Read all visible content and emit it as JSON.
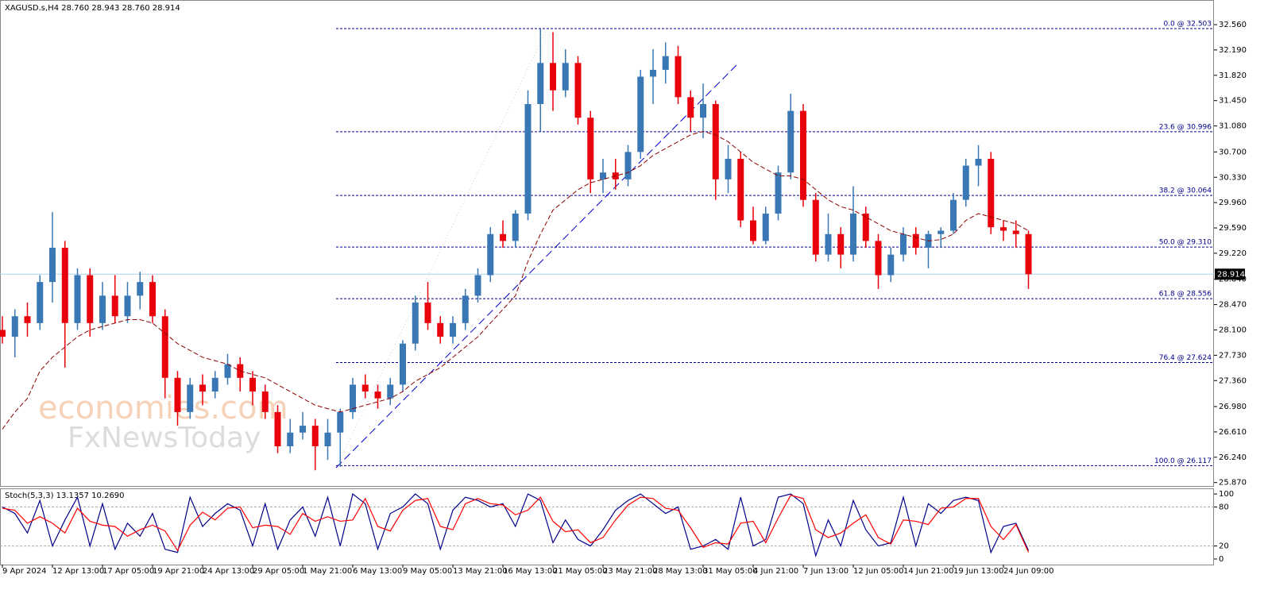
{
  "chart_data": [
    {
      "type": "candlestick",
      "title": "XAGUSD.s,H4  28.760 28.943 28.760 28.914",
      "watermark": [
        "economies.com",
        "FxNewsToday"
      ],
      "categories": [
        "9 Apr 2024",
        null,
        null,
        null,
        "12 Apr 13:00",
        null,
        null,
        null,
        "17 Apr 05:00",
        null,
        null,
        null,
        "19 Apr 21:00",
        null,
        null,
        null,
        "24 Apr 13:00",
        null,
        null,
        null,
        "29 Apr 05:00",
        null,
        null,
        null,
        "1 May 21:00",
        null,
        null,
        null,
        "6 May 13:00",
        null,
        null,
        null,
        "9 May 05:00",
        null,
        null,
        null,
        "13 May 21:00",
        null,
        null,
        null,
        "16 May 13:00",
        null,
        null,
        null,
        "21 May 05:00",
        null,
        null,
        null,
        "23 May 21:00",
        null,
        null,
        null,
        "28 May 13:00",
        null,
        null,
        null,
        "31 May 05:00",
        null,
        null,
        null,
        "4 Jun 21:00",
        null,
        null,
        null,
        "7 Jun 13:00",
        null,
        null,
        null,
        "12 Jun 05:00",
        null,
        null,
        null,
        "14 Jun 21:00",
        null,
        null,
        null,
        "19 Jun 13:00",
        null,
        null,
        null,
        "24 Jun 09:00",
        null,
        null
      ],
      "open": [
        28.1,
        28.0,
        28.3,
        28.2,
        28.8,
        29.3,
        28.2,
        28.9,
        28.2,
        28.6,
        28.3,
        28.6,
        28.8,
        28.3,
        27.4,
        26.9,
        27.3,
        27.2,
        27.4,
        27.6,
        27.4,
        27.2,
        26.9,
        26.4,
        26.6,
        26.7,
        26.4,
        26.6,
        26.9,
        27.3,
        27.2,
        27.1,
        27.3,
        27.9,
        28.5,
        28.2,
        28.0,
        28.2,
        28.6,
        28.9,
        29.5,
        29.4,
        29.8,
        31.4,
        32.0,
        31.6,
        32.0,
        31.2,
        30.3,
        30.4,
        30.3,
        30.7,
        31.8,
        31.9,
        32.1,
        31.5,
        31.2,
        31.4,
        30.3,
        30.6,
        29.7,
        29.4,
        29.8,
        30.4,
        31.3,
        30.0,
        29.2,
        29.5,
        29.2,
        29.8,
        29.4,
        28.9,
        29.2,
        29.5,
        29.3,
        29.5,
        29.55,
        30.0,
        30.5,
        30.6,
        29.6,
        29.55,
        29.5
      ],
      "high": [
        28.3,
        28.4,
        28.5,
        28.9,
        29.82,
        29.4,
        29.0,
        29.0,
        28.8,
        28.9,
        28.8,
        28.95,
        28.9,
        28.4,
        27.5,
        27.4,
        27.45,
        27.5,
        27.75,
        27.7,
        27.5,
        27.3,
        27.0,
        26.8,
        26.9,
        26.8,
        26.8,
        26.95,
        27.4,
        27.45,
        27.3,
        27.4,
        27.95,
        28.6,
        28.8,
        28.3,
        28.3,
        28.7,
        29.0,
        29.6,
        29.7,
        29.85,
        31.6,
        32.5,
        32.45,
        32.2,
        32.1,
        31.3,
        30.6,
        30.6,
        30.8,
        31.9,
        32.2,
        32.3,
        32.25,
        31.6,
        31.7,
        31.45,
        30.8,
        30.7,
        29.9,
        29.9,
        30.5,
        31.55,
        31.4,
        30.1,
        29.8,
        29.6,
        30.2,
        29.9,
        29.5,
        29.3,
        29.6,
        29.6,
        29.55,
        29.6,
        30.1,
        30.6,
        30.8,
        30.7,
        29.7,
        29.7,
        29.55
      ],
      "low": [
        27.9,
        27.7,
        28.0,
        28.1,
        28.5,
        27.55,
        28.1,
        28.0,
        28.1,
        28.2,
        28.2,
        28.4,
        28.2,
        27.1,
        26.7,
        26.8,
        27.0,
        27.1,
        27.3,
        27.2,
        27.0,
        26.8,
        26.3,
        26.3,
        26.5,
        26.05,
        26.2,
        26.1,
        26.8,
        27.1,
        26.95,
        27.0,
        27.2,
        27.8,
        28.1,
        27.9,
        27.9,
        28.1,
        28.5,
        28.8,
        29.3,
        29.3,
        29.7,
        31.0,
        31.3,
        31.5,
        31.1,
        30.1,
        30.1,
        30.15,
        30.2,
        30.6,
        31.4,
        31.7,
        31.4,
        31.0,
        30.9,
        30.0,
        30.1,
        29.6,
        29.35,
        29.35,
        29.7,
        30.3,
        29.9,
        29.1,
        29.1,
        29.0,
        29.1,
        29.3,
        28.7,
        28.8,
        29.1,
        29.2,
        29.0,
        29.3,
        29.5,
        29.9,
        30.2,
        29.5,
        29.4,
        29.3,
        28.7
      ],
      "close": [
        28.0,
        28.3,
        28.2,
        28.8,
        29.3,
        28.2,
        28.9,
        28.2,
        28.6,
        28.3,
        28.6,
        28.8,
        28.3,
        27.4,
        26.9,
        27.3,
        27.2,
        27.4,
        27.6,
        27.4,
        27.2,
        26.9,
        26.4,
        26.6,
        26.7,
        26.4,
        26.6,
        26.9,
        27.3,
        27.2,
        27.1,
        27.3,
        27.9,
        28.5,
        28.2,
        28.0,
        28.2,
        28.6,
        28.9,
        29.5,
        29.4,
        29.8,
        31.4,
        32.0,
        31.6,
        32.0,
        31.2,
        30.3,
        30.4,
        30.3,
        30.7,
        31.8,
        31.9,
        32.1,
        31.5,
        31.2,
        31.4,
        30.3,
        30.6,
        29.7,
        29.4,
        29.8,
        30.4,
        31.3,
        30.0,
        29.2,
        29.5,
        29.2,
        29.8,
        29.4,
        28.9,
        29.2,
        29.5,
        29.3,
        29.5,
        29.55,
        30.0,
        30.5,
        30.6,
        29.6,
        29.55,
        29.5,
        28.914
      ],
      "up_color": "#3a78b5",
      "down_color": "#e8000b",
      "moving_average": {
        "color": "#8b0000",
        "values": [
          26.65,
          26.9,
          27.1,
          27.5,
          27.7,
          27.85,
          28.0,
          28.1,
          28.15,
          28.2,
          28.25,
          28.25,
          28.2,
          28.05,
          27.9,
          27.8,
          27.7,
          27.65,
          27.6,
          27.5,
          27.45,
          27.4,
          27.3,
          27.2,
          27.1,
          27.0,
          26.95,
          26.9,
          26.95,
          27.0,
          27.05,
          27.1,
          27.2,
          27.35,
          27.45,
          27.55,
          27.7,
          27.85,
          28.0,
          28.2,
          28.4,
          28.6,
          29.1,
          29.5,
          29.85,
          30.0,
          30.15,
          30.25,
          30.3,
          30.35,
          30.4,
          30.5,
          30.65,
          30.75,
          30.85,
          30.95,
          31.0,
          30.95,
          30.85,
          30.7,
          30.55,
          30.45,
          30.35,
          30.35,
          30.3,
          30.15,
          30.0,
          29.9,
          29.85,
          29.75,
          29.65,
          29.55,
          29.5,
          29.45,
          29.4,
          29.42,
          29.5,
          29.7,
          29.8,
          29.75,
          29.7,
          29.65,
          29.55
        ]
      },
      "levels": [
        {
          "value": 32.503,
          "label": "0.0 @ 32.503"
        },
        {
          "value": 30.996,
          "label": "23.6 @ 30.996"
        },
        {
          "value": 30.064,
          "label": "38.2 @ 30.064"
        },
        {
          "value": 29.31,
          "label": "50.0 @ 29.310"
        },
        {
          "value": 28.556,
          "label": "61.8 @ 28.556"
        },
        {
          "value": 27.624,
          "label": "76.4 @ 27.624"
        },
        {
          "value": 26.117,
          "label": "100.0 @ 26.117"
        }
      ],
      "level_color": "#00008b",
      "current_price": {
        "value": 28.914,
        "label": "28.914"
      },
      "ylim": [
        25.82,
        32.92
      ],
      "yticks": [
        {
          "value": 32.56,
          "label": "32.560"
        },
        {
          "value": 32.19,
          "label": "32.190"
        },
        {
          "value": 31.82,
          "label": "31.820"
        },
        {
          "value": 31.45,
          "label": "31.450"
        },
        {
          "value": 31.08,
          "label": "31.080"
        },
        {
          "value": 30.7,
          "label": "30.700"
        },
        {
          "value": 30.33,
          "label": "30.330"
        },
        {
          "value": 29.96,
          "label": "29.960"
        },
        {
          "value": 29.59,
          "label": "29.590"
        },
        {
          "value": 29.22,
          "label": "29.220"
        },
        {
          "value": 28.84,
          "label": "28.840"
        },
        {
          "value": 28.47,
          "label": "28.470"
        },
        {
          "value": 28.1,
          "label": "28.100"
        },
        {
          "value": 27.73,
          "label": "27.730"
        },
        {
          "value": 27.36,
          "label": "27.360"
        },
        {
          "value": 26.98,
          "label": "26.980"
        },
        {
          "value": 26.61,
          "label": "26.610"
        },
        {
          "value": 26.24,
          "label": "26.240"
        },
        {
          "value": 25.87,
          "label": "25.870"
        }
      ]
    },
    {
      "type": "line",
      "title": "Stoch(5,3,3) 13.1357 10.2690",
      "series": [
        {
          "color": "#00008b",
          "values": [
            80,
            70,
            40,
            90,
            20,
            60,
            95,
            20,
            85,
            15,
            55,
            35,
            70,
            15,
            10,
            95,
            50,
            70,
            85,
            75,
            20,
            85,
            15,
            60,
            80,
            35,
            95,
            20,
            100,
            85,
            15,
            70,
            80,
            100,
            85,
            15,
            75,
            95,
            90,
            80,
            85,
            50,
            100,
            90,
            25,
            60,
            30,
            20,
            45,
            75,
            90,
            100,
            85,
            70,
            80,
            15,
            20,
            30,
            15,
            95,
            20,
            30,
            95,
            100,
            85,
            5,
            60,
            20,
            90,
            45,
            20,
            25,
            95,
            20,
            85,
            70,
            90,
            95,
            90,
            10,
            50,
            55,
            13.1357
          ]
        },
        {
          "color": "#ff0000",
          "values": [
            78,
            75,
            55,
            65,
            55,
            40,
            78,
            58,
            52,
            50,
            35,
            45,
            52,
            43,
            13,
            52,
            72,
            60,
            78,
            80,
            48,
            52,
            50,
            38,
            70,
            58,
            65,
            58,
            60,
            93,
            50,
            43,
            75,
            90,
            93,
            50,
            45,
            85,
            93,
            85,
            83,
            68,
            75,
            95,
            58,
            42,
            45,
            25,
            33,
            60,
            83,
            95,
            93,
            78,
            75,
            48,
            18,
            25,
            23,
            55,
            58,
            25,
            63,
            98,
            93,
            45,
            33,
            40,
            55,
            68,
            33,
            23,
            60,
            58,
            53,
            78,
            80,
            93,
            93,
            50,
            30,
            53,
            10.269
          ]
        }
      ],
      "ylim": [
        -8.6,
        108.6
      ],
      "yticks": [
        100,
        80,
        20,
        0
      ],
      "grid": true
    }
  ]
}
